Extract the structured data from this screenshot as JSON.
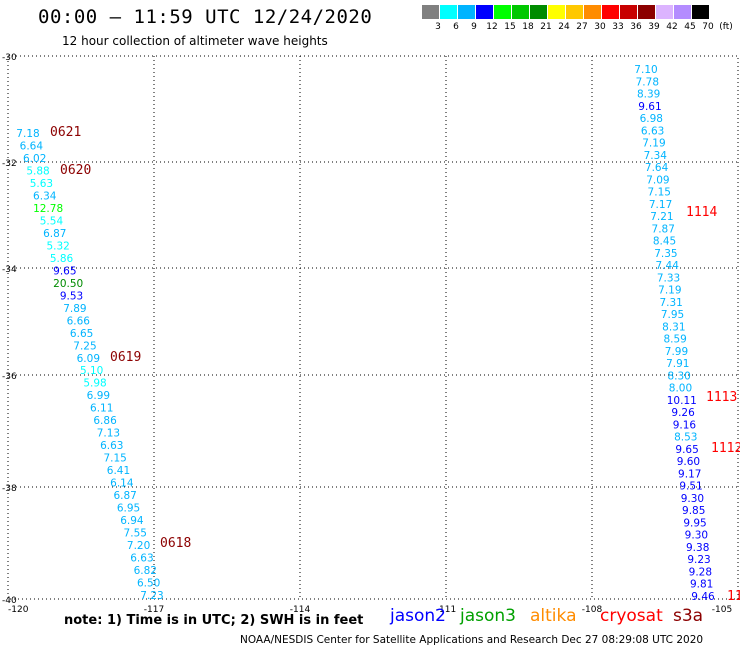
{
  "header": {
    "title": "00:00 – 11:59 UTC 12/24/2020",
    "subtitle": "12 hour collection of altimeter wave heights"
  },
  "legend": {
    "colors": [
      "#808080",
      "#00ffff",
      "#00b4ff",
      "#0000ff",
      "#00ff00",
      "#00c800",
      "#008c00",
      "#ffff00",
      "#ffc800",
      "#ff8c00",
      "#ff0000",
      "#c80000",
      "#8c0000",
      "#dcb4ff",
      "#b48cff",
      "#000000"
    ],
    "labels": [
      "3",
      "6",
      "9",
      "12",
      "15",
      "18",
      "21",
      "24",
      "27",
      "30",
      "33",
      "36",
      "39",
      "42",
      "45",
      "70",
      "(ft)"
    ]
  },
  "map": {
    "lat_ticks": [
      "-30",
      "-32",
      "-34",
      "-36",
      "-38",
      "-40"
    ],
    "lon_ticks": [
      "-120",
      "-117",
      "-114",
      "-111",
      "-108",
      "-105"
    ],
    "lat_range": [
      -40,
      -30
    ],
    "lon_range": [
      -120,
      -105
    ],
    "west_track": {
      "values": [
        "7.18",
        "6.64",
        "6.02",
        "5.88",
        "5.63",
        "6.34",
        "12.78",
        "5.54",
        "6.87",
        "5.32",
        "5.86",
        "9.65",
        "20.50",
        "9.53",
        "7.89",
        "6.66",
        "6.65",
        "7.25",
        "6.09",
        "5.10",
        "5.98",
        "6.99",
        "6.11",
        "6.86",
        "7.13",
        "6.63",
        "7.15",
        "6.41",
        "6.14",
        "6.87",
        "6.95",
        "6.94",
        "7.55",
        "7.20",
        "6.63",
        "6.82",
        "6.50",
        "7.23"
      ],
      "colors": [
        "#00b4ff",
        "#00b4ff",
        "#00b4ff",
        "#00ffff",
        "#00ffff",
        "#00b4ff",
        "#00ff00",
        "#00ffff",
        "#00b4ff",
        "#00ffff",
        "#00ffff",
        "#0000ff",
        "#008c00",
        "#0000ff",
        "#00b4ff",
        "#00b4ff",
        "#00b4ff",
        "#00b4ff",
        "#00b4ff",
        "#00ffff",
        "#00ffff",
        "#00b4ff",
        "#00b4ff",
        "#00b4ff",
        "#00b4ff",
        "#00b4ff",
        "#00b4ff",
        "#00b4ff",
        "#00b4ff",
        "#00b4ff",
        "#00b4ff",
        "#00b4ff",
        "#00b4ff",
        "#00b4ff",
        "#00b4ff",
        "#00b4ff",
        "#00b4ff",
        "#00b4ff"
      ],
      "times": [
        "0621",
        "0620",
        "0619",
        "0618"
      ],
      "time_color": "#8c0000"
    },
    "east_track": {
      "values": [
        "7.10",
        "7.78",
        "8.39",
        "9.61",
        "6.98",
        "6.63",
        "7.19",
        "7.34",
        "7.64",
        "7.09",
        "7.15",
        "7.17",
        "7.21",
        "7.87",
        "8.45",
        "7.35",
        "7.44",
        "7.33",
        "7.19",
        "7.31",
        "7.95",
        "8.31",
        "8.59",
        "7.99",
        "7.91",
        "8.30",
        "8.00",
        "10.11",
        "9.26",
        "9.16",
        "8.53",
        "9.65",
        "9.60",
        "9.17",
        "9.51",
        "9.30",
        "9.85",
        "9.95",
        "9.30",
        "9.38",
        "9.23",
        "9.28",
        "9.81",
        "9.46"
      ],
      "colors": [
        "#00b4ff",
        "#00b4ff",
        "#00b4ff",
        "#0000ff",
        "#00b4ff",
        "#00b4ff",
        "#00b4ff",
        "#00b4ff",
        "#00b4ff",
        "#00b4ff",
        "#00b4ff",
        "#00b4ff",
        "#00b4ff",
        "#00b4ff",
        "#00b4ff",
        "#00b4ff",
        "#00b4ff",
        "#00b4ff",
        "#00b4ff",
        "#00b4ff",
        "#00b4ff",
        "#00b4ff",
        "#00b4ff",
        "#00b4ff",
        "#00b4ff",
        "#00b4ff",
        "#00b4ff",
        "#0000ff",
        "#0000ff",
        "#0000ff",
        "#00b4ff",
        "#0000ff",
        "#0000ff",
        "#0000ff",
        "#0000ff",
        "#0000ff",
        "#0000ff",
        "#0000ff",
        "#0000ff",
        "#0000ff",
        "#0000ff",
        "#0000ff",
        "#0000ff",
        "#0000ff"
      ],
      "times": [
        "1114",
        "1113",
        "1112",
        "11"
      ],
      "time_color": "#ff0000"
    }
  },
  "footer": {
    "note": "note: 1) Time is in UTC; 2) SWH is in feet",
    "satellites": [
      {
        "name": "jason2",
        "color": "#0000ff"
      },
      {
        "name": "jason3",
        "color": "#00a000"
      },
      {
        "name": "altika",
        "color": "#ff8c00"
      },
      {
        "name": "cryosat",
        "color": "#ff0000"
      },
      {
        "name": "s3a",
        "color": "#8c0000"
      }
    ],
    "credit": "NOAA/NESDIS Center for Satellite Applications and Research    Dec 27 08:29:08 UTC 2020"
  }
}
